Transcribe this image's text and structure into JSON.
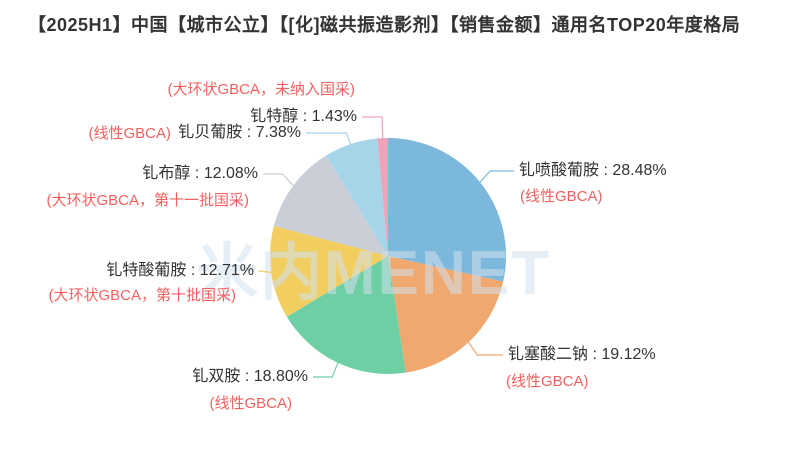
{
  "title": "【2025H1】中国【城市公立】【[化]磁共振造影剂】【销售金额】通用名TOP20年度格局",
  "watermark": "米内MENET",
  "text_color": "#333333",
  "note_color": "#f4605f",
  "background_color": "#ffffff",
  "chart_data": {
    "type": "pie",
    "title": "【2025H1】中国【城市公立】【[化]磁共振造影剂】【销售金额】通用名TOP20年度格局",
    "unit": "percent-of-sales",
    "start_angle_deg": 0,
    "direction": "clockwise",
    "label_format": "{name} : {value}%",
    "slices": [
      {
        "name": "钆喷酸葡胺",
        "value": 28.48,
        "note": "(线性GBCA)",
        "color": "#7cb8db"
      },
      {
        "name": "钆塞酸二钠",
        "value": 19.12,
        "note": "(线性GBCA)",
        "color": "#f0a86e"
      },
      {
        "name": "钆双胺",
        "value": 18.8,
        "note": "(线性GBCA)",
        "color": "#6fcfa4"
      },
      {
        "name": "钆特酸葡胺",
        "value": 12.71,
        "note": "(大环状GBCA，第十批国采)",
        "color": "#f2ce61"
      },
      {
        "name": "钆布醇",
        "value": 12.08,
        "note": "(大环状GBCA，第十一批国采)",
        "color": "#c9ced7"
      },
      {
        "name": "钆贝葡胺",
        "value": 7.38,
        "note": "(线性GBCA)",
        "color": "#a6d4e9"
      },
      {
        "name": "钆特醇",
        "value": 1.43,
        "note": "(大环状GBCA，未纳入国采)",
        "color": "#f0a3b8"
      }
    ]
  }
}
